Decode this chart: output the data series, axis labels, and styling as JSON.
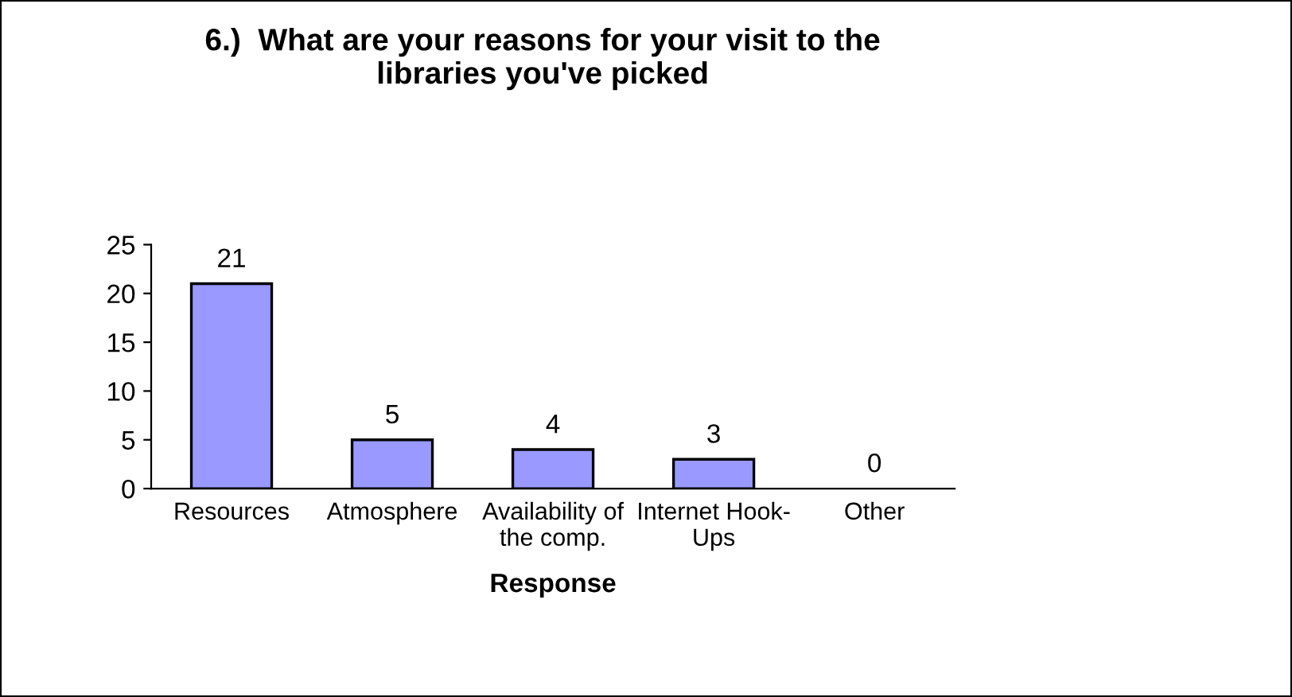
{
  "chart_data": {
    "type": "bar",
    "title": "6.)  What are your reasons for your visit to the\nlibraries you've picked",
    "xlabel": "Response",
    "categories": [
      "Resources",
      "Atmosphere",
      "Availability of\nthe comp.",
      "Internet Hook-\nUps",
      "Other"
    ],
    "values": [
      21,
      5,
      4,
      3,
      0
    ],
    "color": "#9999ff",
    "ylim": [
      0,
      25
    ],
    "yticks": [
      0,
      5,
      10,
      15,
      20,
      25
    ],
    "grid": false,
    "data_labels": true
  }
}
